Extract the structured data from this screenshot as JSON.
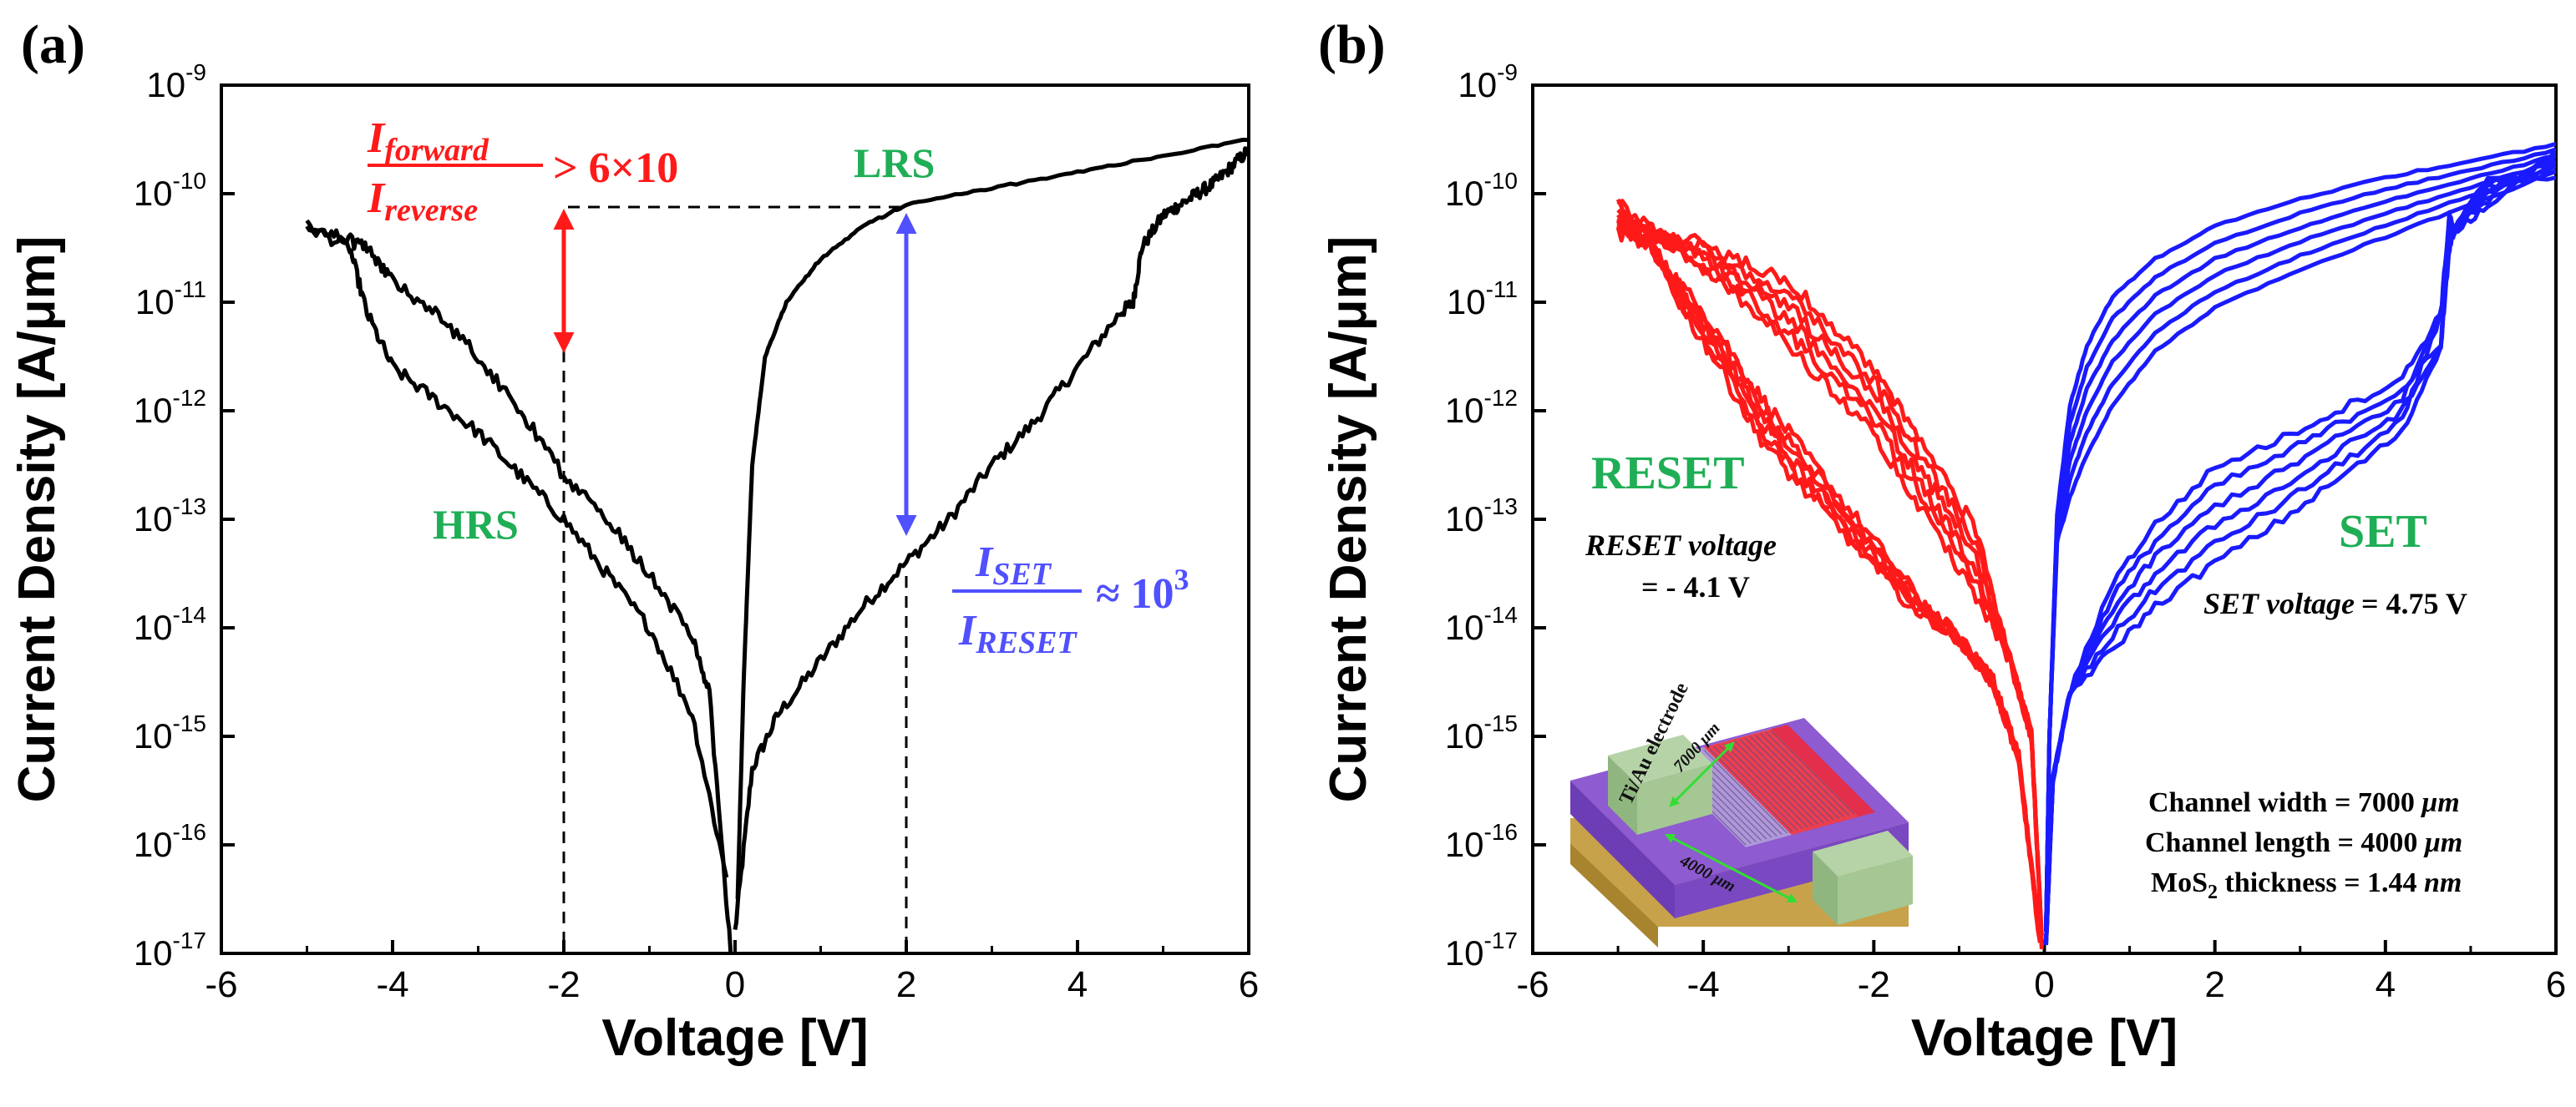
{
  "chart_data": [
    {
      "type": "line",
      "panel_label": "(a)",
      "xlabel": "Voltage [V]",
      "ylabel": "Current Density [A/μm]",
      "xlim": [
        -6,
        6
      ],
      "ylim_log10": [
        -17,
        -9
      ],
      "y_scale": "log",
      "x_ticks": [
        -6,
        -4,
        -2,
        0,
        2,
        4,
        6
      ],
      "y_tick_exponents": [
        -17,
        -16,
        -15,
        -14,
        -13,
        -12,
        -11,
        -10,
        -9
      ],
      "y_tick_base": "10",
      "series": [
        {
          "name": "HRS forward branch (0 to 6 V)",
          "color": "#000000",
          "x": [
            0.0,
            0.2,
            0.5,
            1.0,
            1.5,
            2.0,
            2.5,
            3.0,
            3.5,
            4.0,
            4.5,
            4.65,
            4.75,
            5.0,
            5.2,
            5.4,
            5.6,
            5.8,
            6.0
          ],
          "log10_y": [
            -16.8,
            -15.3,
            -14.8,
            -14.3,
            -13.8,
            -13.4,
            -13.0,
            -12.5,
            -12.1,
            -11.6,
            -11.1,
            -11.0,
            -10.5,
            -10.2,
            -10.1,
            -10.0,
            -9.9,
            -9.75,
            -9.6
          ]
        },
        {
          "name": "LRS branch (6 to 0 V)",
          "color": "#000000",
          "x": [
            6.0,
            5.0,
            4.0,
            3.0,
            2.0,
            1.5,
            1.0,
            0.6,
            0.35,
            0.2,
            0.1,
            0.03
          ],
          "log10_y": [
            -9.5,
            -9.65,
            -9.8,
            -9.95,
            -10.1,
            -10.3,
            -10.6,
            -11.0,
            -11.5,
            -12.5,
            -14.5,
            -16.5
          ]
        },
        {
          "name": "RESET sweep (0 to -5 V)",
          "color": "#000000",
          "x": [
            -0.05,
            -0.3,
            -0.5,
            -1.0,
            -1.5,
            -2.0,
            -2.5,
            -3.0,
            -3.5,
            -4.0,
            -4.3,
            -4.6,
            -5.0
          ],
          "log10_y": [
            -17.0,
            -14.6,
            -14.1,
            -13.5,
            -13.0,
            -12.6,
            -12.0,
            -11.5,
            -11.1,
            -10.8,
            -10.5,
            -10.4,
            -10.3
          ]
        },
        {
          "name": "HRS reverse return (-5 to 0 V)",
          "color": "#000000",
          "x": [
            -5.0,
            -4.5,
            -4.3,
            -4.0,
            -3.5,
            -3.0,
            -2.5,
            -2.0,
            -1.5,
            -1.0,
            -0.5,
            -0.1
          ],
          "log10_y": [
            -10.3,
            -10.5,
            -11.1,
            -11.6,
            -11.9,
            -12.2,
            -12.6,
            -13.0,
            -13.5,
            -14.0,
            -14.8,
            -16.3
          ]
        }
      ],
      "annotations": {
        "ratio_forward_num": "I",
        "ratio_forward_num_sub": "forward",
        "ratio_forward_den": "I",
        "ratio_forward_den_sub": "reverse",
        "ratio_forward_value": "> 6×10",
        "ratio_set_num": "I",
        "ratio_set_num_sub": "SET",
        "ratio_set_den": "I",
        "ratio_set_den_sub": "RESET",
        "ratio_set_value": "≈ 10",
        "ratio_set_exp": "3",
        "hrs_label": "HRS",
        "lrs_label": "LRS"
      },
      "marker_points": {
        "forward_arrow": {
          "x": -2,
          "log10_y_top": -10.2,
          "log10_y_bottom": -11.55
        },
        "set_arrow": {
          "x": 2,
          "log10_y_top": -10.2,
          "log10_y_bottom": -13.2
        },
        "dashed_horizontal_log10_y": -10.12,
        "dashed_vertical_x": [
          -2,
          2
        ]
      },
      "colors": {
        "forward": "#ff1a1a",
        "set": "#5050ff",
        "state_label": "#1fae55"
      }
    },
    {
      "type": "line",
      "panel_label": "(b)",
      "xlabel": "Voltage [V]",
      "ylabel": "Current Density [A/μm]",
      "xlim": [
        -6,
        6
      ],
      "ylim_log10": [
        -17,
        -9
      ],
      "y_scale": "log",
      "x_ticks": [
        -6,
        -4,
        -2,
        0,
        2,
        4,
        6
      ],
      "y_tick_exponents": [
        -17,
        -16,
        -15,
        -14,
        -13,
        -12,
        -11,
        -10,
        -9
      ],
      "y_tick_base": "10",
      "series_groups": [
        {
          "name": "RESET cycles",
          "color": "#ff1a1a",
          "cycles": 6,
          "x_range": [
            -5,
            0
          ],
          "log10_y_at_minus5": [
            -10.1,
            -10.35
          ],
          "log10_y_near_zero": -16.9
        },
        {
          "name": "SET cycles",
          "color": "#1a1aff",
          "cycles": 6,
          "x_range": [
            0,
            6
          ],
          "log10_y_at_6": [
            -9.55,
            -9.8
          ],
          "switch_voltage": 4.75
        }
      ],
      "annotations": {
        "reset_label": "RESET",
        "reset_voltage_label": "RESET voltage",
        "reset_voltage_value": "= - 4.1 V",
        "set_label": "SET",
        "set_voltage_label": "SET voltage",
        "set_voltage_value": "= 4.75 V",
        "channel_width_label": "Channel width = 7000 ",
        "channel_width_unit": "μm",
        "channel_length_label": "Channel length = 4000 ",
        "channel_length_unit": "μm",
        "thickness_label_prefix": "MoS",
        "thickness_label_sub": "2",
        "thickness_label_mid": " thickness  = 1.44 ",
        "thickness_unit": "nm"
      },
      "inset": {
        "electrode_label": "Ti/Au electrode",
        "width_label": "7000 μm",
        "length_label": "4000 μm"
      },
      "colors": {
        "state_label": "#1fae55"
      }
    }
  ]
}
